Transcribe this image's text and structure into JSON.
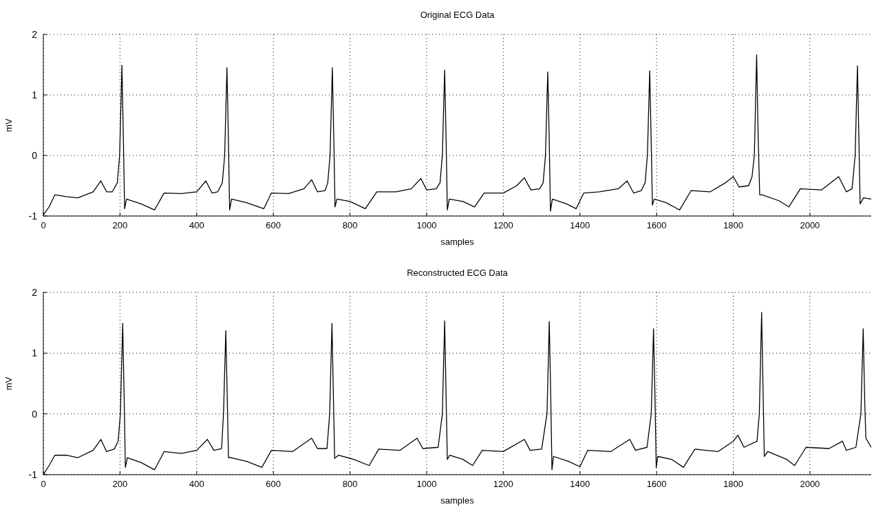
{
  "chart_data": [
    {
      "type": "line",
      "title": "Original ECG Data",
      "xlabel": "samples",
      "ylabel": "mV",
      "xlim": [
        0,
        2160
      ],
      "xticks": [
        0,
        200,
        400,
        600,
        800,
        1000,
        1200,
        1400,
        1600,
        1800,
        2000
      ],
      "ylim": [
        -1,
        2
      ],
      "yticks": [
        -1,
        0,
        1,
        2
      ],
      "grid": true,
      "line_style": "solid",
      "marker": "none",
      "series": [
        {
          "color": "#000000",
          "x": [
            0,
            15,
            30,
            60,
            90,
            130,
            150,
            165,
            180,
            193,
            199,
            205,
            209,
            212,
            217,
            255,
            290,
            315,
            360,
            400,
            424,
            440,
            455,
            467,
            473,
            479,
            483,
            486,
            491,
            530,
            575,
            595,
            640,
            680,
            700,
            715,
            735,
            742,
            748,
            754,
            758,
            761,
            766,
            800,
            840,
            870,
            920,
            960,
            985,
            1000,
            1025,
            1035,
            1041,
            1047,
            1051,
            1054,
            1059,
            1095,
            1125,
            1150,
            1200,
            1235,
            1255,
            1272,
            1295,
            1304,
            1310,
            1316,
            1320,
            1323,
            1328,
            1365,
            1390,
            1410,
            1450,
            1500,
            1523,
            1540,
            1560,
            1570,
            1576,
            1582,
            1586,
            1589,
            1594,
            1625,
            1660,
            1690,
            1740,
            1780,
            1800,
            1815,
            1840,
            1849,
            1855,
            1861,
            1865,
            1869,
            1875,
            1920,
            1945,
            1975,
            2030,
            2075,
            2095,
            2110,
            2118,
            2124,
            2128,
            2131,
            2140,
            2160
          ],
          "values": [
            -0.98,
            -0.85,
            -0.65,
            -0.68,
            -0.7,
            -0.6,
            -0.42,
            -0.6,
            -0.6,
            -0.45,
            0,
            1.49,
            0.2,
            -0.88,
            -0.72,
            -0.8,
            -0.9,
            -0.62,
            -0.63,
            -0.6,
            -0.42,
            -0.62,
            -0.6,
            -0.45,
            0,
            1.45,
            0.2,
            -0.9,
            -0.72,
            -0.78,
            -0.88,
            -0.62,
            -0.63,
            -0.55,
            -0.4,
            -0.6,
            -0.58,
            -0.45,
            0,
            1.45,
            0.2,
            -0.85,
            -0.72,
            -0.76,
            -0.88,
            -0.6,
            -0.6,
            -0.55,
            -0.38,
            -0.57,
            -0.55,
            -0.45,
            0,
            1.41,
            0.2,
            -0.9,
            -0.72,
            -0.76,
            -0.85,
            -0.62,
            -0.62,
            -0.5,
            -0.37,
            -0.57,
            -0.55,
            -0.45,
            0,
            1.38,
            0.2,
            -0.92,
            -0.72,
            -0.8,
            -0.88,
            -0.62,
            -0.6,
            -0.55,
            -0.42,
            -0.62,
            -0.58,
            -0.45,
            0,
            1.4,
            0.2,
            -0.82,
            -0.72,
            -0.78,
            -0.9,
            -0.58,
            -0.6,
            -0.45,
            -0.35,
            -0.52,
            -0.5,
            -0.35,
            0,
            1.66,
            0.3,
            -0.65,
            -0.65,
            -0.75,
            -0.85,
            -0.55,
            -0.57,
            -0.35,
            -0.6,
            -0.55,
            0,
            1.48,
            0.2,
            -0.8,
            -0.7,
            -0.72
          ]
        }
      ]
    },
    {
      "type": "line",
      "title": "Reconstructed ECG Data",
      "xlabel": "samples",
      "ylabel": "mV",
      "xlim": [
        0,
        2160
      ],
      "xticks": [
        0,
        200,
        400,
        600,
        800,
        1000,
        1200,
        1400,
        1600,
        1800,
        2000
      ],
      "ylim": [
        -1,
        2
      ],
      "yticks": [
        -1,
        0,
        1,
        2
      ],
      "grid": true,
      "line_style": "solid",
      "marker": "none",
      "series": [
        {
          "color": "#000000",
          "x": [
            0,
            15,
            30,
            60,
            90,
            130,
            150,
            165,
            185,
            195,
            201,
            207,
            211,
            214,
            219,
            255,
            290,
            315,
            360,
            400,
            428,
            445,
            465,
            470,
            476,
            480,
            483,
            490,
            530,
            570,
            595,
            650,
            700,
            715,
            740,
            747,
            753,
            757,
            760,
            770,
            810,
            850,
            875,
            930,
            975,
            990,
            1030,
            1041,
            1047,
            1051,
            1054,
            1060,
            1095,
            1120,
            1145,
            1200,
            1255,
            1270,
            1300,
            1314,
            1320,
            1324,
            1327,
            1331,
            1370,
            1400,
            1420,
            1480,
            1530,
            1545,
            1575,
            1586,
            1592,
            1596,
            1599,
            1603,
            1640,
            1670,
            1700,
            1760,
            1800,
            1812,
            1828,
            1862,
            1868,
            1874,
            1878,
            1881,
            1890,
            1940,
            1960,
            1990,
            2050,
            2085,
            2095,
            2120,
            2133,
            2139,
            2143,
            2146,
            2160
          ],
          "values": [
            -1,
            -0.85,
            -0.68,
            -0.68,
            -0.72,
            -0.6,
            -0.42,
            -0.62,
            -0.58,
            -0.45,
            0,
            1.49,
            0.2,
            -0.88,
            -0.72,
            -0.8,
            -0.92,
            -0.62,
            -0.65,
            -0.6,
            -0.42,
            -0.6,
            -0.57,
            0,
            1.37,
            0.2,
            -0.72,
            -0.72,
            -0.78,
            -0.88,
            -0.6,
            -0.62,
            -0.4,
            -0.57,
            -0.57,
            0,
            1.49,
            0.2,
            -0.73,
            -0.68,
            -0.75,
            -0.85,
            -0.58,
            -0.6,
            -0.4,
            -0.57,
            -0.55,
            0,
            1.53,
            0.2,
            -0.75,
            -0.68,
            -0.75,
            -0.85,
            -0.6,
            -0.62,
            -0.42,
            -0.6,
            -0.58,
            0,
            1.52,
            0.2,
            -0.92,
            -0.7,
            -0.78,
            -0.87,
            -0.6,
            -0.62,
            -0.42,
            -0.6,
            -0.55,
            0,
            1.4,
            0.2,
            -0.88,
            -0.7,
            -0.75,
            -0.88,
            -0.58,
            -0.62,
            -0.45,
            -0.35,
            -0.55,
            -0.45,
            0,
            1.67,
            0.3,
            -0.7,
            -0.62,
            -0.75,
            -0.85,
            -0.55,
            -0.57,
            -0.45,
            -0.6,
            -0.55,
            0,
            1.4,
            0.2,
            -0.4,
            -0.55
          ]
        }
      ]
    }
  ]
}
